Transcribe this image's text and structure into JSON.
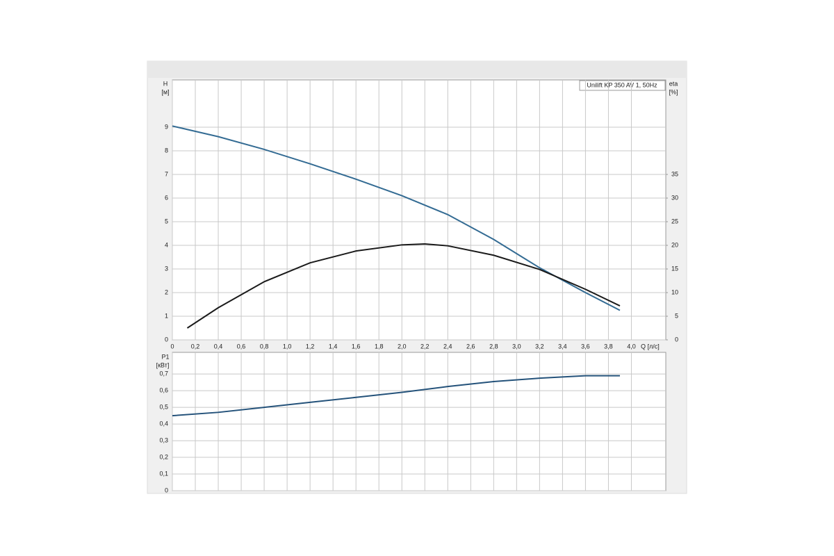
{
  "chart_data": [
    {
      "type": "line",
      "title": "Unilift KP 350 AV 1, 50Hz",
      "ylabel": "H",
      "yunit": "[м]",
      "y2label": "eta",
      "y2unit": "[%]",
      "xlabel": "Q [л/с]",
      "xlim": [
        0,
        4.3
      ],
      "xticks": [
        0,
        {
          "value": 0.2,
          "label": "0,2"
        },
        {
          "value": 0.4,
          "label": "0,4"
        },
        {
          "value": 0.6,
          "label": "0,6"
        },
        {
          "value": 0.8,
          "label": "0,8"
        },
        {
          "value": 1.0,
          "label": "1,0"
        },
        {
          "value": 1.2,
          "label": "1,2"
        },
        {
          "value": 1.4,
          "label": "1,4"
        },
        {
          "value": 1.6,
          "label": "1,6"
        },
        {
          "value": 1.8,
          "label": "1,8"
        },
        {
          "value": 2.0,
          "label": "2,0"
        },
        {
          "value": 2.2,
          "label": "2,2"
        },
        {
          "value": 2.4,
          "label": "2,4"
        },
        {
          "value": 2.6,
          "label": "2,6"
        },
        {
          "value": 2.8,
          "label": "2,8"
        },
        {
          "value": 3.0,
          "label": "3,0"
        },
        {
          "value": 3.2,
          "label": "3,2"
        },
        {
          "value": 3.4,
          "label": "3,4"
        },
        {
          "value": 3.6,
          "label": "3,6"
        },
        {
          "value": 3.8,
          "label": "3,8"
        },
        {
          "value": 4.0,
          "label": "4,0"
        }
      ],
      "ylim": [
        0,
        11
      ],
      "yticks": [
        0,
        1,
        2,
        3,
        4,
        5,
        6,
        7,
        8,
        9
      ],
      "y2lim": [
        0,
        55
      ],
      "y2ticks": [
        0,
        5,
        10,
        15,
        20,
        25,
        30,
        35
      ],
      "grid": true,
      "series": [
        {
          "color": "#336b93",
          "x": [
            0,
            0.4,
            0.8,
            1.2,
            1.6,
            2.0,
            2.4,
            2.8,
            3.2,
            3.6,
            3.9
          ],
          "values": [
            9.05,
            8.6,
            8.06,
            7.45,
            6.8,
            6.1,
            5.3,
            4.25,
            3.05,
            2.0,
            1.25
          ]
        },
        {
          "color": "#1a1a1a",
          "axis": "y2",
          "x": [
            0.13,
            0.4,
            0.8,
            1.2,
            1.6,
            2.0,
            2.2,
            2.4,
            2.8,
            3.2,
            3.6,
            3.9
          ],
          "values": [
            2.5,
            6.8,
            12.3,
            16.3,
            18.8,
            20.1,
            20.3,
            19.9,
            17.9,
            14.9,
            10.7,
            7.2
          ]
        }
      ]
    },
    {
      "type": "line",
      "ylabel": "P1",
      "yunit": "[кВт]",
      "xlim": [
        0,
        4.3
      ],
      "ylim": [
        0,
        0.83
      ],
      "yticks": [
        0,
        {
          "value": 0.1,
          "label": "0,1"
        },
        {
          "value": 0.2,
          "label": "0,2"
        },
        {
          "value": 0.3,
          "label": "0,3"
        },
        {
          "value": 0.4,
          "label": "0,4"
        },
        {
          "value": 0.5,
          "label": "0,5"
        },
        {
          "value": 0.6,
          "label": "0,6"
        },
        {
          "value": 0.7,
          "label": "0,7"
        }
      ],
      "grid": true,
      "series": [
        {
          "color": "#24527a",
          "x": [
            0,
            0.4,
            0.8,
            1.2,
            1.6,
            2.0,
            2.4,
            2.8,
            3.2,
            3.6,
            3.9
          ],
          "values": [
            0.45,
            0.47,
            0.5,
            0.53,
            0.56,
            0.59,
            0.625,
            0.655,
            0.675,
            0.69,
            0.69
          ]
        }
      ]
    }
  ]
}
